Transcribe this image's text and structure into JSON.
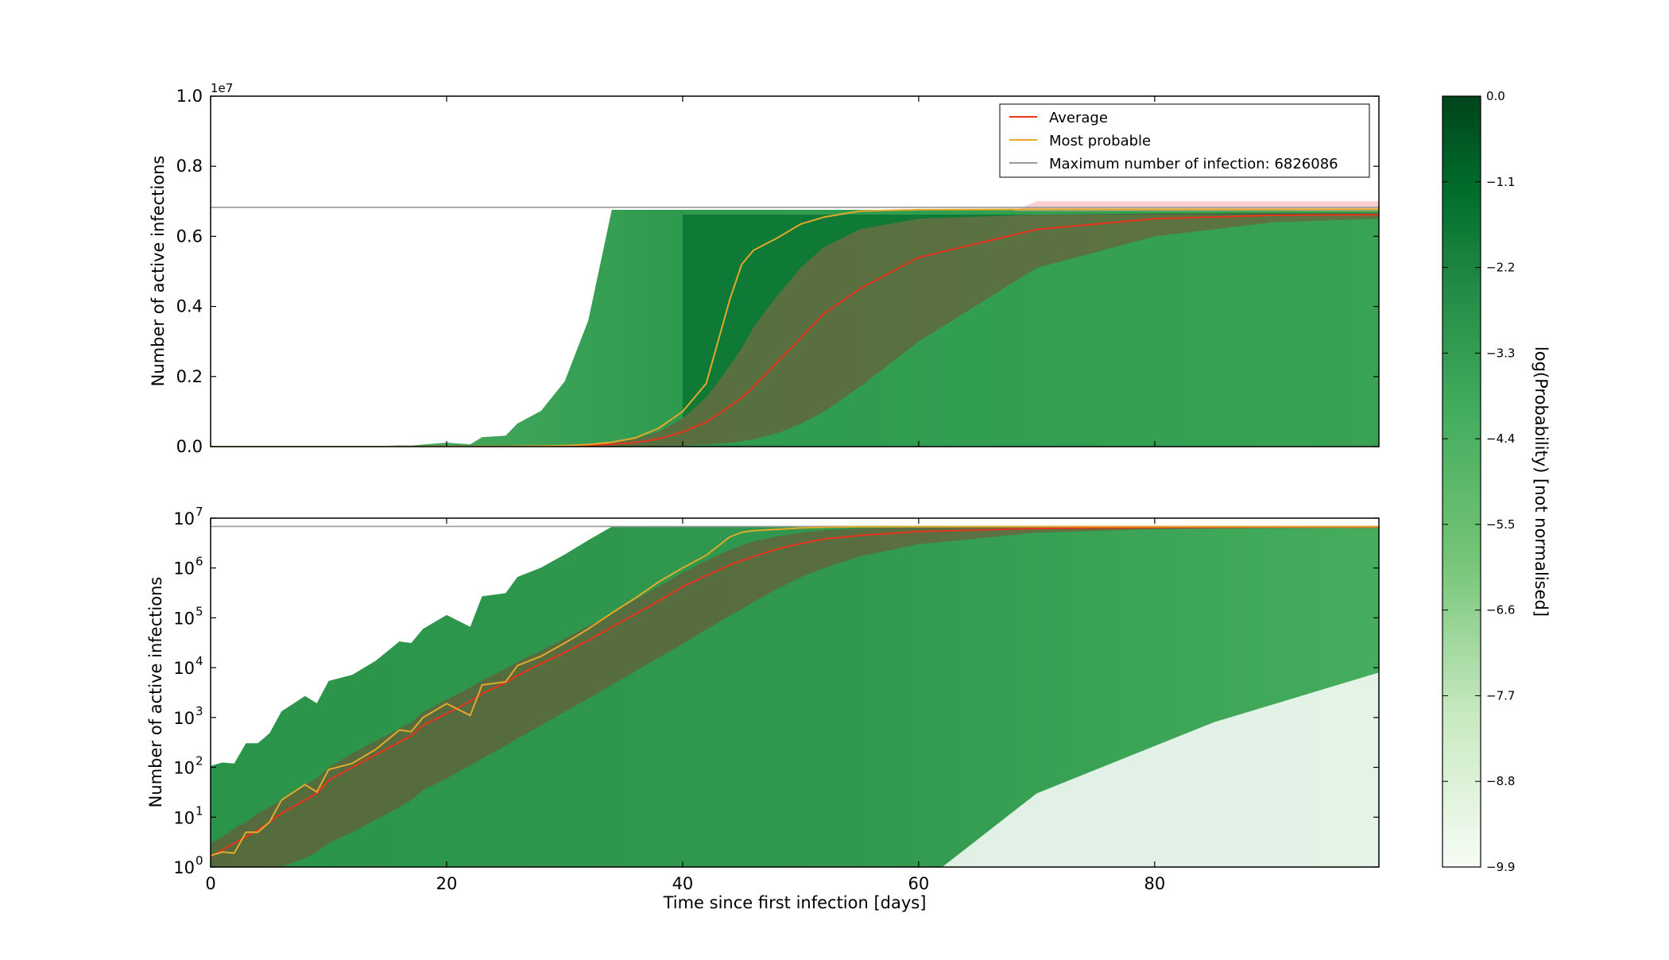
{
  "colors": {
    "average": "#e8341c",
    "most_probable": "#e3a92a",
    "max_line": "#9a9a9a",
    "band": "#8b3a2e",
    "cmap_high": "#00441b",
    "cmap_mid": "#238b45",
    "cmap_low": "#f7fcf5",
    "outlier_band": "#f4a6a6"
  },
  "chart_data": [
    {
      "type": "heatmap",
      "panel": "top",
      "scale": "linear",
      "ylabel": "Number of active infections",
      "xlabel": "",
      "xlim": [
        0,
        99
      ],
      "ylim": [
        0,
        10000000
      ],
      "y_offset_label": "1e7",
      "xticks": [
        0,
        20,
        40,
        60,
        80
      ],
      "xtick_labels": [],
      "yticks": [
        0,
        2000000,
        4000000,
        6000000,
        8000000,
        10000000
      ],
      "ytick_labels": [
        "0.0",
        "0.2",
        "0.4",
        "0.6",
        "0.8",
        "1.0"
      ],
      "max_infection": 6826086,
      "legend": {
        "placement": "upper-right",
        "entries": [
          {
            "label": "Average",
            "series": "average"
          },
          {
            "label": "Most probable",
            "series": "most_probable"
          },
          {
            "label": "Maximum number of infection: 6826086",
            "series": "max_line"
          }
        ]
      }
    },
    {
      "type": "heatmap",
      "panel": "bottom",
      "scale": "log",
      "ylabel": "Number of active infections",
      "xlabel": "Time since first infection [days]",
      "xlim": [
        0,
        99
      ],
      "ylim": [
        1,
        10000000
      ],
      "xticks": [
        0,
        20,
        40,
        60,
        80
      ],
      "xtick_labels": [
        "0",
        "20",
        "40",
        "60",
        "80"
      ],
      "yticks": [
        1,
        10,
        100,
        1000,
        10000,
        100000,
        1000000,
        10000000
      ],
      "ytick_base": [
        "10",
        "10",
        "10",
        "10",
        "10",
        "10",
        "10",
        "10"
      ],
      "ytick_exp": [
        "0",
        "1",
        "2",
        "3",
        "4",
        "5",
        "6",
        "7"
      ],
      "max_infection": 6826086
    }
  ],
  "series": {
    "days": [
      0,
      1,
      2,
      3,
      4,
      5,
      6,
      8,
      9,
      10,
      12,
      14,
      16,
      17,
      18,
      20,
      22,
      23,
      25,
      26,
      28,
      30,
      32,
      34,
      36,
      38,
      40,
      42,
      44,
      45,
      46,
      48,
      50,
      52,
      55,
      60,
      70,
      80,
      90,
      99
    ],
    "most_probable": [
      1.7,
      2,
      1.9,
      5,
      5,
      8,
      22,
      45,
      32,
      90,
      120,
      230,
      560,
      520,
      1000,
      1900,
      1100,
      4500,
      5200,
      11000,
      17000,
      31000,
      60000,
      125000,
      250000,
      530000,
      1000000,
      1800000,
      4200000,
      5200000,
      5600000,
      5950000,
      6350000,
      6550000,
      6720000,
      6760000,
      6770000,
      6770000,
      6770000,
      6770000
    ],
    "average": [
      1.6,
      2.2,
      3,
      4,
      5.5,
      8,
      12,
      22,
      30,
      55,
      100,
      180,
      320,
      430,
      700,
      1200,
      2100,
      3000,
      5000,
      7000,
      12000,
      20000,
      35000,
      65000,
      120000,
      220000,
      420000,
      700000,
      1150000,
      1400000,
      1700000,
      2400000,
      3100000,
      3800000,
      4500000,
      5400000,
      6200000,
      6500000,
      6600000,
      6620000
    ],
    "band_high": [
      3,
      4,
      6,
      8,
      12,
      16,
      22,
      45,
      60,
      100,
      190,
      340,
      600,
      800,
      1300,
      2300,
      4000,
      5500,
      9500,
      13000,
      22000,
      38000,
      68000,
      125000,
      230000,
      430000,
      800000,
      1400000,
      2300000,
      2800000,
      3400000,
      4300000,
      5100000,
      5700000,
      6200000,
      6500000,
      6620000,
      6650000,
      6660000,
      6660000
    ],
    "band_low": [
      1,
      1,
      1,
      1,
      1,
      1,
      1,
      1.5,
      2,
      3,
      5,
      9,
      16,
      22,
      35,
      60,
      110,
      150,
      270,
      380,
      700,
      1300,
      2400,
      4500,
      8500,
      16000,
      30000,
      58000,
      110000,
      150000,
      210000,
      380000,
      650000,
      1000000,
      1700000,
      3000000,
      5100000,
      6000000,
      6400000,
      6500000
    ]
  },
  "colorbar": {
    "label": "log(Probability) [not normalised]",
    "min": -9.9,
    "max": 0.0,
    "ticks": [
      0.0,
      -1.1,
      -2.2,
      -3.3,
      -4.4,
      -5.5,
      -6.6,
      -7.7,
      -8.8,
      -9.9
    ],
    "tick_labels": [
      "0.0",
      "−1.1",
      "−2.2",
      "−3.3",
      "−4.4",
      "−5.5",
      "−6.6",
      "−7.7",
      "−8.8",
      "−9.9"
    ]
  }
}
